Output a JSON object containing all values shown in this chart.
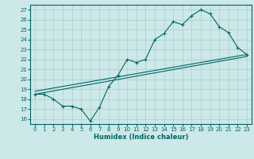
{
  "xlabel": "Humidex (Indice chaleur)",
  "bg_color": "#cce8e8",
  "grid_color": "#aacccc",
  "line_color": "#006666",
  "xlim": [
    -0.5,
    23.5
  ],
  "ylim": [
    15.5,
    27.5
  ],
  "xticks": [
    0,
    1,
    2,
    3,
    4,
    5,
    6,
    7,
    8,
    9,
    10,
    11,
    12,
    13,
    14,
    15,
    16,
    17,
    18,
    19,
    20,
    21,
    22,
    23
  ],
  "yticks": [
    16,
    17,
    18,
    19,
    20,
    21,
    22,
    23,
    24,
    25,
    26,
    27
  ],
  "line1_x": [
    0,
    1,
    2,
    3,
    4,
    5,
    6,
    7,
    8,
    9,
    10,
    11,
    12,
    13,
    14,
    15,
    16,
    17,
    18,
    19,
    20,
    21,
    22,
    23
  ],
  "line1_y": [
    18.5,
    18.5,
    18.0,
    17.3,
    17.3,
    17.0,
    15.8,
    17.2,
    19.3,
    20.4,
    22.0,
    21.7,
    22.0,
    24.0,
    24.6,
    25.8,
    25.5,
    26.4,
    27.0,
    26.6,
    25.3,
    24.7,
    23.2,
    22.5
  ],
  "line2_x": [
    0,
    23
  ],
  "line2_y": [
    18.5,
    22.3
  ],
  "line3_x": [
    0,
    23
  ],
  "line3_y": [
    18.8,
    22.5
  ]
}
